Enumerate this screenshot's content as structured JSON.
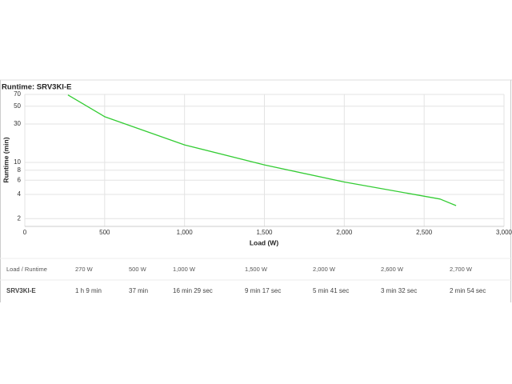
{
  "chart_data": {
    "type": "line",
    "title": "Runtime: SRV3KI-E",
    "x_label": "Load (W)",
    "y_label": "Runtime (min)",
    "x": [
      270,
      500,
      1000,
      1500,
      2000,
      2600,
      2700
    ],
    "values": [
      69,
      37,
      16.5,
      9.3,
      5.7,
      3.5,
      2.9
    ],
    "color": "#33cc33",
    "xlim": [
      0,
      3000
    ],
    "xticks": [
      0,
      500,
      {
        "value": 1000,
        "label": "1,000"
      },
      {
        "value": 1500,
        "label": "1,500"
      },
      {
        "value": 2000,
        "label": "2,000"
      },
      {
        "value": 2500,
        "label": "2,500"
      },
      {
        "value": 3000,
        "label": "3,000"
      }
    ],
    "ylim": [
      1.6,
      70
    ],
    "yticks": [
      2,
      4,
      6,
      8,
      10,
      30,
      50,
      70
    ],
    "log_y": true,
    "grid": true
  },
  "table": {
    "columns": [
      "Load / Runtime",
      "270 W",
      "500 W",
      "1,000 W",
      "1,500 W",
      "2,000 W",
      "2,600 W",
      "2,700 W"
    ],
    "rows": [
      [
        "SRV3KI-E",
        "1 h 9 min",
        "37 min",
        "16 min 29 sec",
        "9 min 17 sec",
        "5 min 41 sec",
        "3 min 32 sec",
        "2 min 54 sec"
      ]
    ]
  }
}
